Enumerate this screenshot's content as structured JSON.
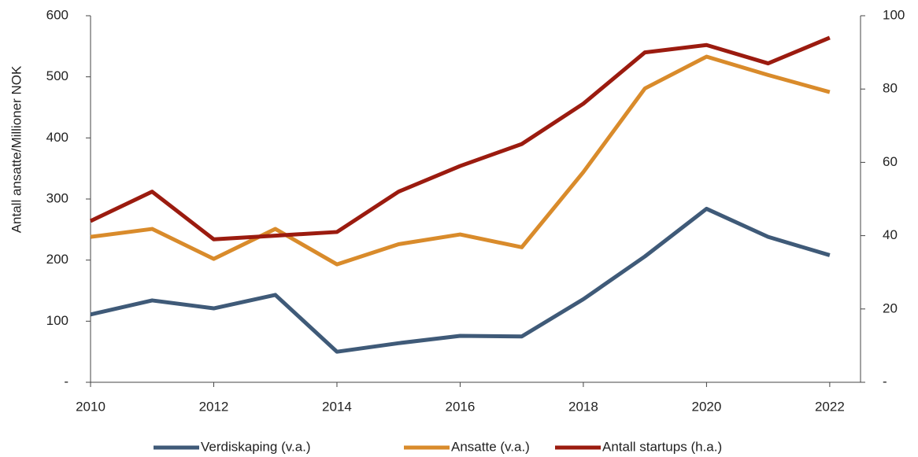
{
  "chart_data": {
    "type": "line",
    "y_label": "Antall ansatte/Millioner NOK",
    "x": [
      2010,
      2011,
      2012,
      2013,
      2014,
      2015,
      2016,
      2017,
      2018,
      2019,
      2020,
      2021,
      2022
    ],
    "xlim": [
      2010,
      2022.5
    ],
    "xticks": [
      2010,
      2012,
      2014,
      2016,
      2018,
      2020,
      2022
    ],
    "ylim": [
      0,
      600
    ],
    "yticks": [
      {
        "value": 0,
        "label": "-"
      },
      100,
      200,
      300,
      400,
      500,
      600
    ],
    "y2lim": [
      0,
      100
    ],
    "y2ticks": [
      {
        "value": 0,
        "label": "-"
      },
      20,
      40,
      60,
      80,
      100
    ],
    "legend": "bottom",
    "series": [
      {
        "name": "Verdiskaping (v.a.)",
        "color": "#3f5a78",
        "values": [
          111,
          134,
          121,
          143,
          50,
          64,
          76,
          75,
          136,
          206,
          284,
          238,
          208
        ]
      },
      {
        "name": "Ansatte (v.a.)",
        "color": "#d98b2b",
        "values": [
          238,
          251,
          202,
          251,
          193,
          226,
          242,
          221,
          344,
          481,
          533,
          503,
          475
        ]
      },
      {
        "name": "Antall startups (h.a.)",
        "color": "#9b1b0f",
        "axis": "y2",
        "values": [
          44,
          52,
          39,
          40,
          41,
          52,
          59,
          65,
          76,
          90,
          92,
          87,
          94
        ]
      }
    ]
  }
}
